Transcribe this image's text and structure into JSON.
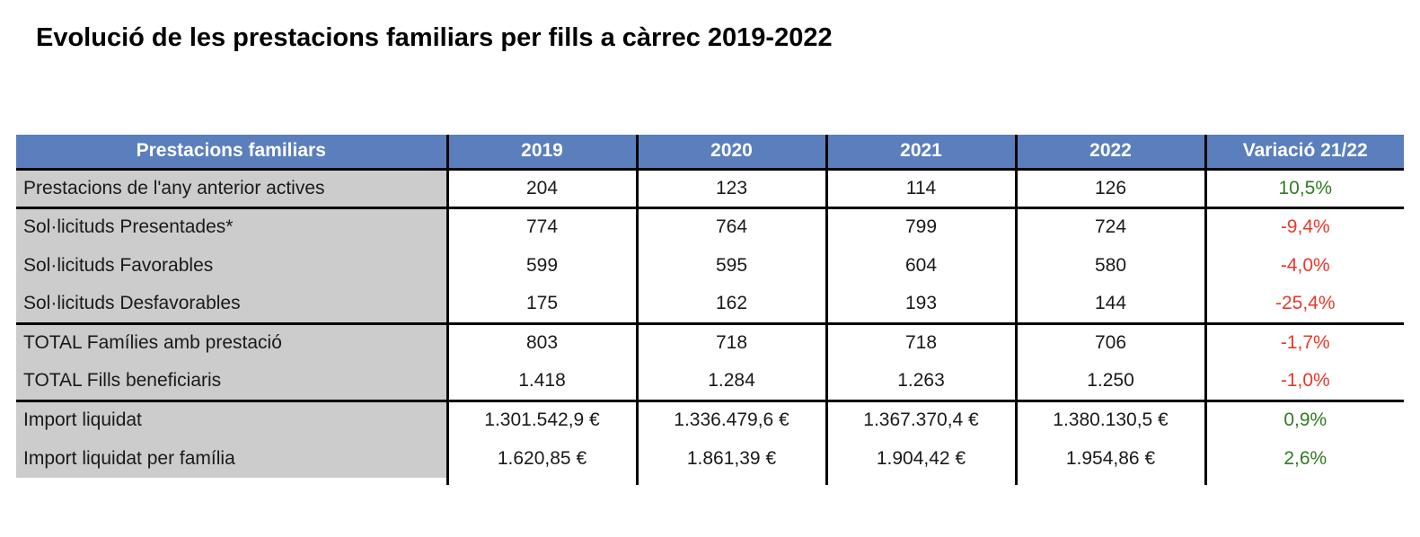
{
  "page": {
    "title": "Evolució de les prestacions familiars per fills a càrrec 2019-2022"
  },
  "colors": {
    "header_bg": "#5A7FBC",
    "header_text": "#FFFFFF",
    "label_bg": "#CCCCCC",
    "positive_variation": "#2F7D1F",
    "negative_variation": "#E8392B",
    "grid_line": "#000000"
  },
  "chart_data": {
    "type": "table",
    "title": "Evolució de les prestacions familiars per fills a càrrec 2019-2022",
    "columns": [
      "Prestacions familiars",
      "2019",
      "2020",
      "2021",
      "2022",
      "Variació 21/22"
    ],
    "rows": [
      [
        "Prestacions de l'any anterior actives",
        "204",
        "123",
        "114",
        "126",
        "10,5%"
      ],
      [
        "Sol·licituds Presentades*",
        "774",
        "764",
        "799",
        "724",
        "-9,4%"
      ],
      [
        "Sol·licituds Favorables",
        "599",
        "595",
        "604",
        "580",
        "-4,0%"
      ],
      [
        "Sol·licituds Desfavorables",
        "175",
        "162",
        "193",
        "144",
        "-25,4%"
      ],
      [
        "TOTAL Famílies amb prestació",
        "803",
        "718",
        "718",
        "706",
        "-1,7%"
      ],
      [
        "TOTAL Fills beneficiaris",
        "1.418",
        "1.284",
        "1.263",
        "1.250",
        "-1,0%"
      ],
      [
        "Import liquidat",
        "1.301.542,9 €",
        "1.336.479,6 €",
        "1.367.370,4 €",
        "1.380.130,5 €",
        "0,9%"
      ],
      [
        "Import liquidat per família",
        "1.620,85 €",
        "1.861,39 €",
        "1.904,42 €",
        "1.954,86 €",
        "2,6%"
      ]
    ]
  },
  "table": {
    "header": {
      "label": "Prestacions familiars",
      "years": [
        "2019",
        "2020",
        "2021",
        "2022"
      ],
      "variation": "Variació 21/22"
    },
    "rows": [
      {
        "label": "Prestacions de l'any anterior actives",
        "values": [
          "204",
          "123",
          "114",
          "126"
        ],
        "variation": "10,5%",
        "trend": "positive"
      },
      {
        "label": "Sol·licituds Presentades*",
        "values": [
          "774",
          "764",
          "799",
          "724"
        ],
        "variation": "-9,4%",
        "trend": "negative"
      },
      {
        "label": "Sol·licituds Favorables",
        "values": [
          "599",
          "595",
          "604",
          "580"
        ],
        "variation": "-4,0%",
        "trend": "negative"
      },
      {
        "label": "Sol·licituds Desfavorables",
        "values": [
          "175",
          "162",
          "193",
          "144"
        ],
        "variation": "-25,4%",
        "trend": "negative"
      },
      {
        "label": "TOTAL Famílies amb prestació",
        "values": [
          "803",
          "718",
          "718",
          "706"
        ],
        "variation": "-1,7%",
        "trend": "negative"
      },
      {
        "label": "TOTAL Fills beneficiaris",
        "values": [
          "1.418",
          "1.284",
          "1.263",
          "1.250"
        ],
        "variation": "-1,0%",
        "trend": "negative"
      },
      {
        "label": "Import liquidat",
        "values": [
          "1.301.542,9 €",
          "1.336.479,6 €",
          "1.367.370,4 €",
          "1.380.130,5 €"
        ],
        "variation": "0,9%",
        "trend": "positive"
      },
      {
        "label": "Import liquidat per família",
        "values": [
          "1.620,85 €",
          "1.861,39 €",
          "1.904,42 €",
          "1.954,86 €"
        ],
        "variation": "2,6%",
        "trend": "positive"
      }
    ]
  }
}
